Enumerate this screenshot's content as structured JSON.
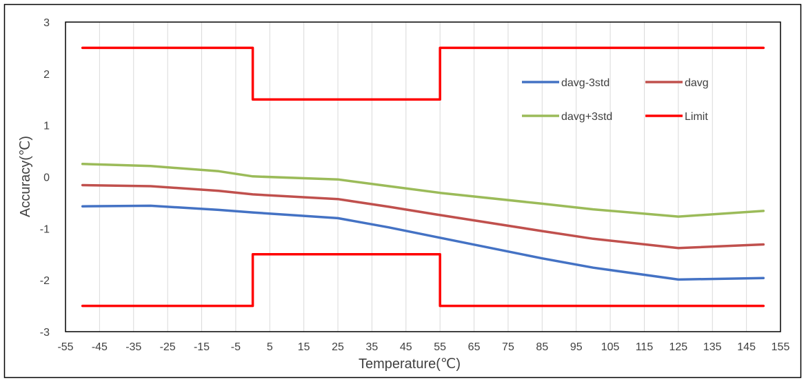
{
  "chart_data": {
    "type": "line",
    "xlabel": "Temperature(℃)",
    "ylabel": "Accuracy(℃)",
    "xlim": [
      -55,
      155
    ],
    "ylim": [
      -3,
      3
    ],
    "x_ticks": [
      -55,
      -45,
      -35,
      -25,
      -15,
      -5,
      5,
      15,
      25,
      35,
      45,
      55,
      65,
      75,
      85,
      95,
      105,
      115,
      125,
      135,
      145,
      155
    ],
    "y_ticks": [
      -3,
      -2,
      -1,
      0,
      1,
      2,
      3
    ],
    "x_tick_labels": [
      "-55",
      "-45",
      "-35",
      "-25",
      "-15",
      "-5",
      "5",
      "15",
      "25",
      "35",
      "45",
      "55",
      "65",
      "75",
      "85",
      "95",
      "105",
      "115",
      "125",
      "135",
      "145",
      "155"
    ],
    "y_tick_labels": [
      "-3",
      "-2",
      "-1",
      "0",
      "1",
      "2",
      "3"
    ],
    "grid": "vertical",
    "legend_position": "top-right",
    "series": [
      {
        "name": "davg-3std",
        "color": "#4472C4",
        "points": [
          [
            -50,
            -0.57
          ],
          [
            -30,
            -0.56
          ],
          [
            -10,
            -0.64
          ],
          [
            0,
            -0.69
          ],
          [
            25,
            -0.8
          ],
          [
            40,
            -0.98
          ],
          [
            55,
            -1.18
          ],
          [
            85,
            -1.58
          ],
          [
            100,
            -1.76
          ],
          [
            125,
            -1.99
          ],
          [
            150,
            -1.96
          ]
        ]
      },
      {
        "name": "davg",
        "color": "#C0504D",
        "points": [
          [
            -50,
            -0.16
          ],
          [
            -30,
            -0.18
          ],
          [
            -10,
            -0.27
          ],
          [
            0,
            -0.34
          ],
          [
            25,
            -0.43
          ],
          [
            40,
            -0.58
          ],
          [
            55,
            -0.74
          ],
          [
            85,
            -1.05
          ],
          [
            100,
            -1.2
          ],
          [
            125,
            -1.38
          ],
          [
            150,
            -1.31
          ]
        ]
      },
      {
        "name": "davg+3std",
        "color": "#9BBB59",
        "points": [
          [
            -50,
            0.25
          ],
          [
            -30,
            0.21
          ],
          [
            -10,
            0.11
          ],
          [
            0,
            0.01
          ],
          [
            25,
            -0.05
          ],
          [
            40,
            -0.18
          ],
          [
            55,
            -0.31
          ],
          [
            85,
            -0.52
          ],
          [
            100,
            -0.63
          ],
          [
            125,
            -0.77
          ],
          [
            150,
            -0.66
          ]
        ]
      },
      {
        "name": "Limit",
        "color": "#FF0000",
        "segments": [
          [
            [
              -50,
              2.5
            ],
            [
              0,
              2.5
            ],
            [
              0,
              1.5
            ],
            [
              55,
              1.5
            ],
            [
              55,
              2.5
            ],
            [
              150,
              2.5
            ]
          ],
          [
            [
              -50,
              -2.5
            ],
            [
              0,
              -2.5
            ],
            [
              0,
              -1.5
            ],
            [
              55,
              -1.5
            ],
            [
              55,
              -2.5
            ],
            [
              150,
              -2.5
            ]
          ]
        ]
      }
    ]
  }
}
